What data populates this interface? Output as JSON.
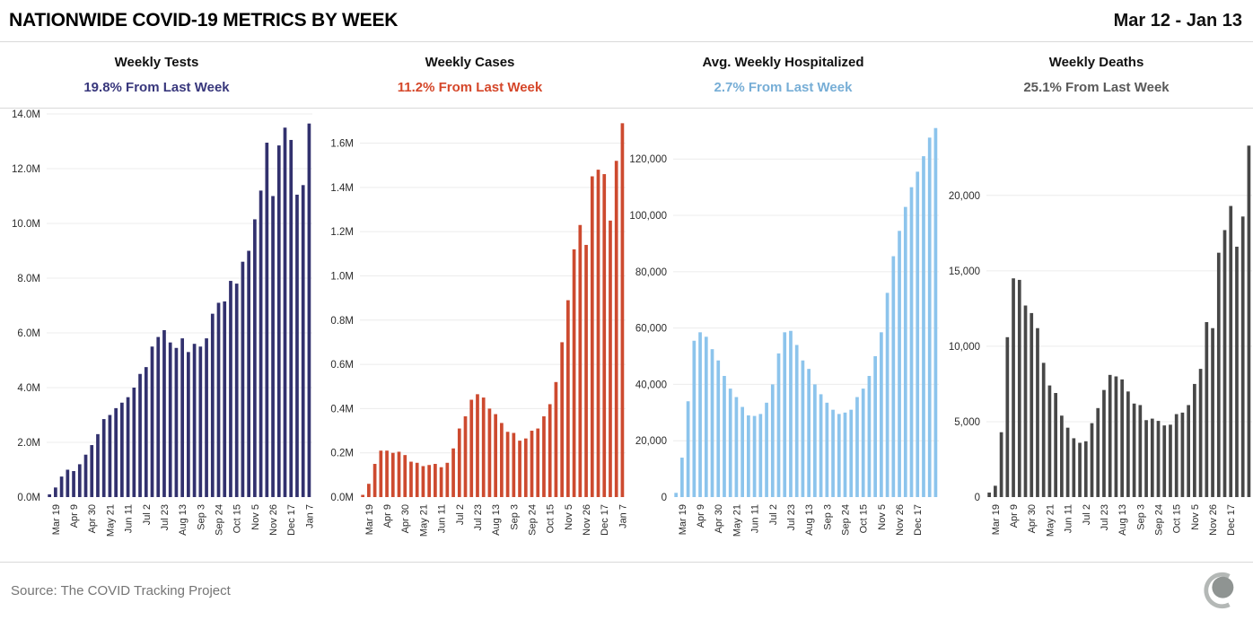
{
  "header": {
    "title": "NATIONWIDE COVID-19 METRICS BY WEEK",
    "date_range": "Mar 12 - Jan 13"
  },
  "footer": {
    "source": "Source: The COVID Tracking Project",
    "logo": "covid-tracking-project-logo"
  },
  "style": {
    "gridline_color": "#ececec",
    "axis_text_color": "#2b2b2b",
    "separator_color": "#d9d9d9",
    "footer_text_color": "#757575",
    "logo_arc_color": "#b4b8b6",
    "logo_dot_color": "#8f9492"
  },
  "chart_data": [
    {
      "id": "weekly-tests",
      "type": "bar",
      "title": "Weekly Tests",
      "subtitle": "19.8% From Last Week",
      "bar_color": "#32316e",
      "text_color": "#38377c",
      "ylim": [
        0,
        14000000
      ],
      "y_ticks": [
        {
          "v": 0,
          "label": "0.0M"
        },
        {
          "v": 2000000,
          "label": "2.0M"
        },
        {
          "v": 4000000,
          "label": "4.0M"
        },
        {
          "v": 6000000,
          "label": "6.0M"
        },
        {
          "v": 8000000,
          "label": "8.0M"
        },
        {
          "v": 10000000,
          "label": "10.0M"
        },
        {
          "v": 12000000,
          "label": "12.0M"
        },
        {
          "v": 14000000,
          "label": "14.0M"
        }
      ],
      "categories": [
        "Mar 12",
        "Mar 19",
        "Mar 26",
        "Apr 2",
        "Apr 9",
        "Apr 16",
        "Apr 23",
        "Apr 30",
        "May 7",
        "May 14",
        "May 21",
        "May 28",
        "Jun 4",
        "Jun 11",
        "Jun 18",
        "Jun 25",
        "Jul 2",
        "Jul 9",
        "Jul 16",
        "Jul 23",
        "Jul 30",
        "Aug 6",
        "Aug 13",
        "Aug 20",
        "Aug 27",
        "Sep 3",
        "Sep 10",
        "Sep 17",
        "Sep 24",
        "Oct 1",
        "Oct 8",
        "Oct 15",
        "Oct 22",
        "Oct 29",
        "Nov 5",
        "Nov 12",
        "Nov 19",
        "Nov 26",
        "Dec 3",
        "Dec 10",
        "Dec 17",
        "Dec 24",
        "Dec 31",
        "Jan 7"
      ],
      "values": [
        100000,
        350000,
        750000,
        1000000,
        950000,
        1200000,
        1550000,
        1900000,
        2300000,
        2850000,
        3000000,
        3250000,
        3450000,
        3650000,
        4000000,
        4500000,
        4750000,
        5500000,
        5850000,
        6100000,
        5650000,
        5450000,
        5800000,
        5300000,
        5600000,
        5500000,
        5800000,
        6700000,
        7100000,
        7150000,
        7900000,
        7800000,
        8600000,
        9000000,
        10150000,
        11200000,
        12950000,
        11000000,
        12850000,
        13500000,
        13050000,
        11050000,
        11400000,
        13650000
      ],
      "x_tick_labels": [
        "Mar 19",
        "Apr 9",
        "Apr 30",
        "May 21",
        "Jun 11",
        "Jul 2",
        "Jul 23",
        "Aug 13",
        "Sep 3",
        "Sep 24",
        "Oct 15",
        "Nov 5",
        "Nov 26",
        "Dec 17",
        "Jan 7"
      ]
    },
    {
      "id": "weekly-cases",
      "type": "bar",
      "title": "Weekly Cases",
      "subtitle": "11.2% From Last Week",
      "bar_color": "#cd4a2f",
      "text_color": "#d5472a",
      "ylim": [
        0,
        1732000
      ],
      "y_ticks": [
        {
          "v": 0,
          "label": "0.0M"
        },
        {
          "v": 200000,
          "label": "0.2M"
        },
        {
          "v": 400000,
          "label": "0.4M"
        },
        {
          "v": 600000,
          "label": "0.6M"
        },
        {
          "v": 800000,
          "label": "0.8M"
        },
        {
          "v": 1000000,
          "label": "1.0M"
        },
        {
          "v": 1200000,
          "label": "1.2M"
        },
        {
          "v": 1400000,
          "label": "1.4M"
        },
        {
          "v": 1600000,
          "label": "1.6M"
        }
      ],
      "categories": [
        "Mar 12",
        "Mar 19",
        "Mar 26",
        "Apr 2",
        "Apr 9",
        "Apr 16",
        "Apr 23",
        "Apr 30",
        "May 7",
        "May 14",
        "May 21",
        "May 28",
        "Jun 4",
        "Jun 11",
        "Jun 18",
        "Jun 25",
        "Jul 2",
        "Jul 9",
        "Jul 16",
        "Jul 23",
        "Jul 30",
        "Aug 6",
        "Aug 13",
        "Aug 20",
        "Aug 27",
        "Sep 3",
        "Sep 10",
        "Sep 17",
        "Sep 24",
        "Oct 1",
        "Oct 8",
        "Oct 15",
        "Oct 22",
        "Oct 29",
        "Nov 5",
        "Nov 12",
        "Nov 19",
        "Nov 26",
        "Dec 3",
        "Dec 10",
        "Dec 17",
        "Dec 24",
        "Dec 31",
        "Jan 7"
      ],
      "values": [
        10000,
        60000,
        150000,
        210000,
        210000,
        200000,
        205000,
        190000,
        160000,
        155000,
        140000,
        145000,
        150000,
        135000,
        155000,
        220000,
        310000,
        365000,
        440000,
        465000,
        450000,
        400000,
        375000,
        335000,
        295000,
        290000,
        255000,
        265000,
        300000,
        310000,
        365000,
        420000,
        520000,
        700000,
        890000,
        1120000,
        1230000,
        1140000,
        1450000,
        1480000,
        1460000,
        1250000,
        1520000,
        1690000
      ],
      "x_tick_labels": [
        "Mar 19",
        "Apr 9",
        "Apr 30",
        "May 21",
        "Jun 11",
        "Jul 2",
        "Jul 23",
        "Aug 13",
        "Sep 3",
        "Sep 24",
        "Oct 15",
        "Nov 5",
        "Nov 26",
        "Dec 17",
        "Jan 7"
      ]
    },
    {
      "id": "avg-weekly-hospitalized",
      "type": "bar",
      "title": "Avg. Weekly Hospitalized",
      "subtitle": "2.7% From Last Week",
      "bar_color": "#8cc4ec",
      "text_color": "#77aed6",
      "ylim": [
        0,
        136000
      ],
      "y_ticks": [
        {
          "v": 0,
          "label": "0"
        },
        {
          "v": 20000,
          "label": "20,000"
        },
        {
          "v": 40000,
          "label": "40,000"
        },
        {
          "v": 60000,
          "label": "60,000"
        },
        {
          "v": 80000,
          "label": "80,000"
        },
        {
          "v": 100000,
          "label": "100,000"
        },
        {
          "v": 120000,
          "label": "120,000"
        }
      ],
      "categories": [
        "Mar 12",
        "Mar 19",
        "Mar 26",
        "Apr 2",
        "Apr 9",
        "Apr 16",
        "Apr 23",
        "Apr 30",
        "May 7",
        "May 14",
        "May 21",
        "May 28",
        "Jun 4",
        "Jun 11",
        "Jun 18",
        "Jun 25",
        "Jul 2",
        "Jul 9",
        "Jul 16",
        "Jul 23",
        "Jul 30",
        "Aug 6",
        "Aug 13",
        "Aug 20",
        "Aug 27",
        "Sep 3",
        "Sep 10",
        "Sep 17",
        "Sep 24",
        "Oct 1",
        "Oct 8",
        "Oct 15",
        "Oct 22",
        "Oct 29",
        "Nov 5",
        "Nov 12",
        "Nov 19",
        "Nov 26",
        "Dec 3",
        "Dec 10",
        "Dec 17",
        "Dec 24",
        "Dec 31",
        "Jan 7"
      ],
      "values": [
        1500,
        14000,
        34000,
        55500,
        58500,
        56900,
        52500,
        48500,
        43000,
        38500,
        35500,
        32000,
        29000,
        28800,
        29500,
        33500,
        40000,
        51000,
        58500,
        59000,
        54000,
        48500,
        45500,
        40000,
        36500,
        33500,
        31000,
        29500,
        30000,
        31000,
        35500,
        38500,
        43000,
        50000,
        58500,
        72500,
        85500,
        94500,
        103000,
        110000,
        115500,
        121000,
        127600,
        131000
      ],
      "x_tick_labels": [
        "Mar 19",
        "Apr 9",
        "Apr 30",
        "May 21",
        "Jun 11",
        "Jul 2",
        "Jul 23",
        "Aug 13",
        "Sep 3",
        "Sep 24",
        "Oct 15",
        "Nov 5",
        "Nov 26",
        "Dec 17"
      ]
    },
    {
      "id": "weekly-deaths",
      "type": "bar",
      "title": "Weekly Deaths",
      "subtitle": "25.1% From Last Week",
      "bar_color": "#474747",
      "text_color": "#595959",
      "ylim": [
        0,
        25400
      ],
      "y_ticks": [
        {
          "v": 0,
          "label": "0"
        },
        {
          "v": 5000,
          "label": "5,000"
        },
        {
          "v": 10000,
          "label": "10,000"
        },
        {
          "v": 15000,
          "label": "15,000"
        },
        {
          "v": 20000,
          "label": "20,000"
        }
      ],
      "categories": [
        "Mar 12",
        "Mar 19",
        "Mar 26",
        "Apr 2",
        "Apr 9",
        "Apr 16",
        "Apr 23",
        "Apr 30",
        "May 7",
        "May 14",
        "May 21",
        "May 28",
        "Jun 4",
        "Jun 11",
        "Jun 18",
        "Jun 25",
        "Jul 2",
        "Jul 9",
        "Jul 16",
        "Jul 23",
        "Jul 30",
        "Aug 6",
        "Aug 13",
        "Aug 20",
        "Aug 27",
        "Sep 3",
        "Sep 10",
        "Sep 17",
        "Sep 24",
        "Oct 1",
        "Oct 8",
        "Oct 15",
        "Oct 22",
        "Oct 29",
        "Nov 5",
        "Nov 12",
        "Nov 19",
        "Nov 26",
        "Dec 3",
        "Dec 10",
        "Dec 17",
        "Dec 24",
        "Dec 31",
        "Jan 7"
      ],
      "values": [
        300,
        750,
        4300,
        10600,
        14500,
        14400,
        12700,
        12200,
        11200,
        8900,
        7400,
        6900,
        5400,
        4600,
        3900,
        3600,
        3700,
        4900,
        5900,
        7100,
        8100,
        8000,
        7800,
        7000,
        6200,
        6100,
        5100,
        5200,
        5050,
        4750,
        4800,
        5500,
        5600,
        6100,
        7500,
        8500,
        11600,
        11200,
        16200,
        17700,
        19300,
        16600,
        18600,
        23300
      ],
      "x_tick_labels": [
        "Mar 19",
        "Apr 9",
        "Apr 30",
        "May 21",
        "Jun 11",
        "Jul 2",
        "Jul 23",
        "Aug 13",
        "Sep 3",
        "Sep 24",
        "Oct 15",
        "Nov 5",
        "Nov 26",
        "Dec 17"
      ]
    }
  ]
}
